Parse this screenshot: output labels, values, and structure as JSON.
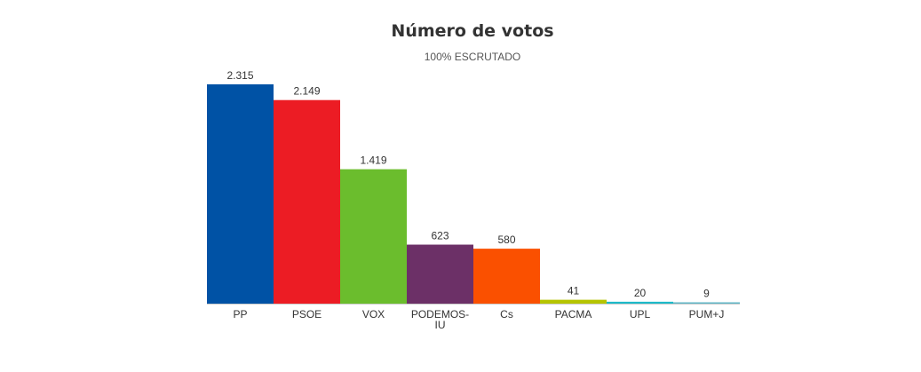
{
  "chart_data": {
    "type": "bar",
    "title": "Número de votos",
    "subtitle": "100% ESCRUTADO",
    "categories": [
      "PP",
      "PSOE",
      "VOX",
      "PODEMOS-IU",
      "Cs",
      "PACMA",
      "UPL",
      "PUM+J"
    ],
    "values": [
      2315,
      2149,
      1419,
      623,
      580,
      41,
      20,
      9
    ],
    "value_labels": [
      "2.315",
      "2.149",
      "1.419",
      "623",
      "580",
      "41",
      "20",
      "9"
    ],
    "tick_labels": [
      [
        "PP"
      ],
      [
        "PSOE"
      ],
      [
        "VOX"
      ],
      [
        "PODEMOS-",
        "IU"
      ],
      [
        "Cs"
      ],
      [
        "PACMA"
      ],
      [
        "UPL"
      ],
      [
        "PUM+J"
      ]
    ],
    "colors": [
      "#0052a5",
      "#ec1c24",
      "#6bbd2d",
      "#6c3067",
      "#fa5000",
      "#b5c400",
      "#1cb9c8",
      "#5fb6c6"
    ],
    "xlabel": "",
    "ylabel": "",
    "ylim": [
      0,
      2315
    ],
    "grid": false,
    "legend": "none"
  }
}
